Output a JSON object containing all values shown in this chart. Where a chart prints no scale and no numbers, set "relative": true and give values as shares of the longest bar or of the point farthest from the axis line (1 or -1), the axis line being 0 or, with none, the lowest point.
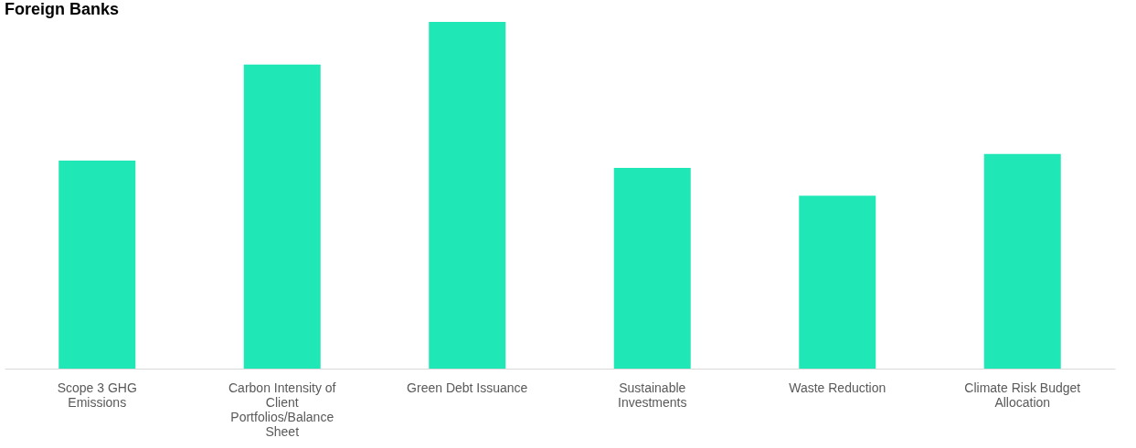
{
  "chart_data": {
    "type": "bar",
    "title": "Foreign Banks",
    "categories": [
      "Scope 3 GHG Emissions",
      "Carbon Intensity of Client Portfolios/Balance Sheet",
      "Green Debt Issuance",
      "Sustainable Investments",
      "Waste Reduction",
      "Climate Risk Budget Allocation"
    ],
    "values": [
      0.6,
      0.877,
      1,
      0.579,
      0.499,
      0.619
    ],
    "color": "#1fe8b6",
    "relative": true,
    "grid": false
  }
}
